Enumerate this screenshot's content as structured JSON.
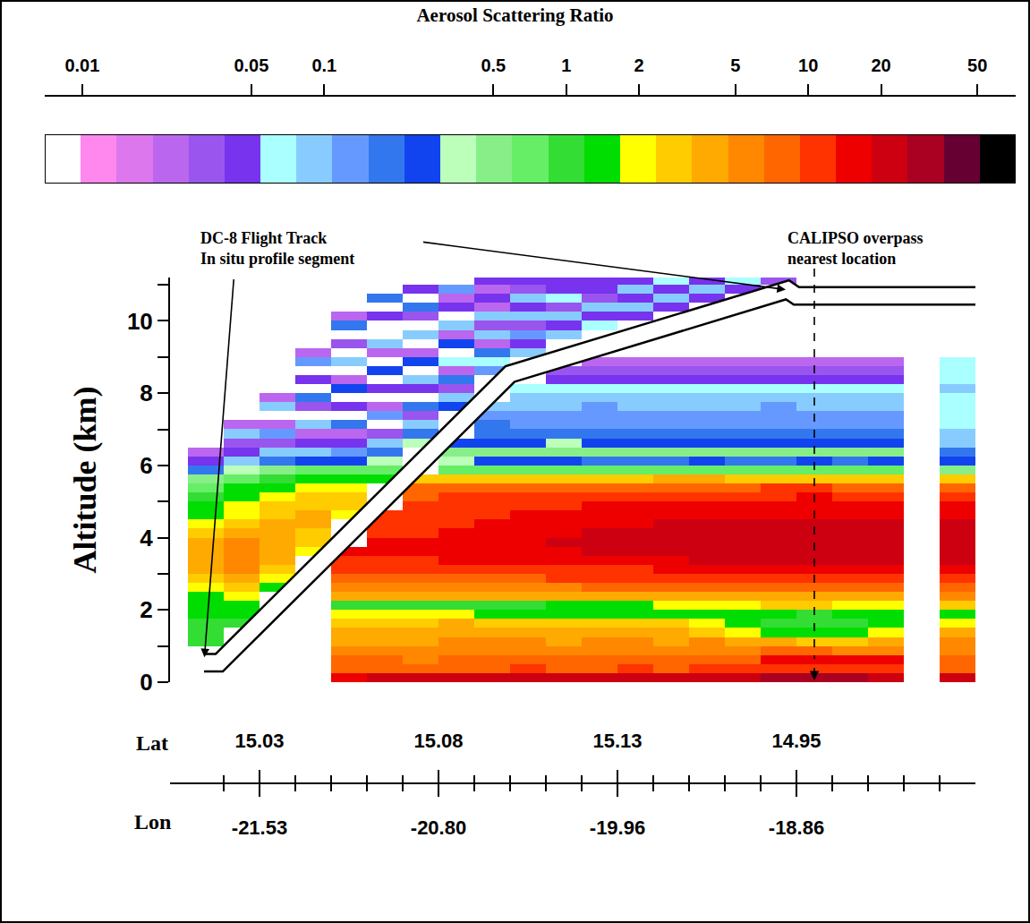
{
  "chart_data": {
    "type": "heatmap",
    "ylabel": "Altitude (km)",
    "xlim": [
      -2.5,
      20
    ],
    "ylim": [
      0,
      11.2
    ],
    "yticks": [
      0,
      2,
      4,
      6,
      8,
      10
    ],
    "yminorticks": [
      1,
      3,
      5,
      7,
      9,
      11
    ],
    "xminorticks": [
      -1,
      1,
      2,
      3,
      4,
      6,
      7,
      8,
      9,
      11,
      12,
      13,
      14,
      16,
      17,
      18,
      19
    ],
    "x_label_rows": [
      {
        "label": "Lat",
        "ticks": [
          {
            "value": 0,
            "label": "15.03"
          },
          {
            "value": 5,
            "label": "15.08"
          },
          {
            "value": 10,
            "label": "15.13"
          },
          {
            "value": 15,
            "label": "14.95"
          }
        ]
      },
      {
        "label": "Lon",
        "ticks": [
          {
            "value": 0,
            "label": "-21.53"
          },
          {
            "value": 5,
            "label": "-20.80"
          },
          {
            "value": 10,
            "label": "-19.96"
          },
          {
            "value": 15,
            "label": "-18.86"
          }
        ]
      }
    ],
    "grid": false,
    "colorbar": {
      "title": "Aerosol Scattering Ratio",
      "range": [
        0.007,
        72
      ],
      "ticks": [
        0.01,
        0.05,
        0.1,
        0.5,
        1,
        2,
        5,
        10,
        20,
        50
      ],
      "log": true
    },
    "flight_track": {
      "x": [
        -1.55,
        -1.125,
        7.0,
        14.75,
        15.0,
        20
      ],
      "y": [
        0.54,
        0.54,
        8.53,
        10.86,
        10.69,
        10.69
      ]
    },
    "annotations": [
      {
        "text": [
          "DC-8 Flight Track",
          "In situ profile segment"
        ]
      },
      {
        "text": [
          "CALIPSO overpass",
          "nearest location"
        ],
        "x": 15.5
      }
    ],
    "x": [
      -1.5,
      -0.5,
      0.5,
      1.5,
      2.5,
      3.5,
      4.5,
      5.5,
      6.5,
      7.5,
      8.5,
      9.5,
      10.5,
      11.5,
      12.5,
      13.5,
      14.5,
      15.5,
      16.5,
      17.5,
      18.5,
      19.5
    ],
    "y": [
      0.125,
      0.375,
      0.625,
      0.875,
      1.125,
      1.375,
      1.625,
      1.875,
      2.125,
      2.375,
      2.625,
      2.875,
      3.125,
      3.375,
      3.625,
      3.875,
      4.125,
      4.375,
      4.625,
      4.875,
      5.125,
      5.375,
      5.625,
      5.875,
      6.125,
      6.375,
      6.625,
      6.875,
      7.125,
      7.375,
      7.625,
      7.875,
      8.125,
      8.375,
      8.625,
      8.875,
      9.125,
      9.375,
      9.625,
      9.875,
      10.125,
      10.375,
      10.625,
      10.875,
      11.125
    ],
    "z": [
      [
        null,
        null,
        null,
        null,
        18,
        20,
        20,
        22,
        20,
        20,
        22,
        20,
        20,
        22,
        20,
        24,
        26,
        26,
        26,
        24,
        null,
        25
      ],
      [
        null,
        null,
        null,
        null,
        9,
        9,
        8,
        9,
        9,
        10,
        9,
        9,
        10,
        9,
        10,
        10,
        12,
        12,
        11,
        11,
        null,
        9
      ],
      [
        null,
        null,
        null,
        null,
        7,
        7,
        6,
        7,
        7,
        8,
        7,
        7,
        8,
        7,
        8,
        9,
        14,
        16,
        16,
        14,
        null,
        8
      ],
      [
        null,
        null,
        null,
        null,
        5,
        5,
        5,
        6,
        6,
        6,
        5,
        6,
        6,
        5,
        6,
        6,
        7,
        7,
        6,
        6,
        null,
        6
      ],
      [
        0.9,
        null,
        null,
        null,
        4,
        4,
        4,
        5,
        5,
        5,
        4,
        5,
        5,
        4,
        5,
        4,
        3.5,
        3,
        3,
        3.5,
        null,
        5
      ],
      [
        1.0,
        null,
        null,
        null,
        3.5,
        3.5,
        4,
        4,
        4,
        4,
        3.5,
        4,
        4,
        3.5,
        3,
        2.2,
        1.5,
        1.2,
        1.3,
        1.8,
        null,
        4
      ],
      [
        1.1,
        1.0,
        null,
        null,
        3,
        3,
        3,
        3.5,
        3,
        3,
        3,
        3,
        2.5,
        2.5,
        2,
        1.6,
        1.0,
        0.9,
        1.1,
        1.5,
        null,
        2
      ],
      [
        1.2,
        1.2,
        null,
        null,
        2,
        2,
        2,
        1.8,
        1.6,
        1.5,
        1.5,
        1.5,
        1.4,
        1.4,
        1.3,
        1.3,
        1.2,
        1.1,
        1.4,
        1.6,
        null,
        1.5
      ],
      [
        1.4,
        1.5,
        null,
        null,
        1,
        1,
        1.1,
        1,
        1,
        1.1,
        1.2,
        1.3,
        1.5,
        1.8,
        2,
        2.2,
        2.5,
        2.5,
        2.2,
        2,
        null,
        3
      ],
      [
        1.6,
        2,
        null,
        null,
        4,
        4,
        4,
        4,
        4,
        4,
        4,
        4.5,
        4.5,
        4.5,
        4.5,
        4.5,
        4,
        4,
        4,
        4,
        null,
        5
      ],
      [
        2,
        3,
        1.2,
        null,
        6,
        6,
        6,
        6,
        6.5,
        6,
        6.5,
        7,
        7,
        7,
        7,
        7,
        7,
        7,
        7,
        7,
        null,
        8
      ],
      [
        2.5,
        4,
        2,
        null,
        8,
        8,
        9,
        9,
        9,
        9,
        10,
        10,
        10,
        10,
        10,
        10,
        11,
        11,
        10,
        10,
        null,
        11
      ],
      [
        3.5,
        5,
        3,
        null,
        11,
        11,
        12,
        12,
        12,
        12,
        13,
        13,
        13,
        14,
        14,
        14,
        15,
        15,
        14,
        14,
        null,
        15
      ],
      [
        4,
        5.5,
        4,
        null,
        13,
        13,
        13,
        14,
        15,
        15,
        16,
        16,
        17,
        18,
        19,
        19,
        20,
        21,
        20,
        19,
        null,
        22
      ],
      [
        4,
        5.5,
        4.5,
        2,
        14,
        14,
        14,
        15,
        16,
        17,
        18,
        19,
        20,
        21,
        22,
        22,
        23,
        24,
        23,
        22,
        null,
        25
      ],
      [
        3.5,
        5,
        4.5,
        2.5,
        null,
        14,
        14,
        15,
        17,
        18,
        19,
        20,
        21,
        22,
        23,
        24,
        25,
        25,
        24,
        23,
        null,
        25
      ],
      [
        3,
        4,
        4,
        3,
        null,
        13,
        13,
        14,
        16,
        17,
        18,
        19,
        20,
        21,
        22,
        22,
        23,
        24,
        23,
        22,
        null,
        22
      ],
      [
        2,
        3,
        3.5,
        3.5,
        null,
        12,
        12,
        13,
        15,
        16,
        17,
        17,
        18,
        19,
        20,
        20,
        21,
        22,
        21,
        20,
        null,
        20
      ],
      [
        1.5,
        2.2,
        3,
        3.5,
        2.2,
        11,
        11,
        12,
        13,
        14,
        15,
        15,
        16,
        17,
        17,
        17,
        18,
        18,
        18,
        17,
        null,
        16
      ],
      [
        1.2,
        1.8,
        2.5,
        3,
        2.5,
        null,
        10,
        11,
        12,
        13,
        13,
        14,
        14,
        15,
        15,
        15,
        16,
        16,
        15,
        15,
        null,
        14
      ],
      [
        1,
        1.5,
        2,
        2.5,
        2.5,
        null,
        9,
        10,
        11,
        11,
        11,
        12,
        12,
        12,
        13,
        13,
        13,
        14,
        13,
        12,
        null,
        12
      ],
      [
        0.8,
        1.2,
        1.5,
        1.8,
        2,
        null,
        7,
        8,
        8,
        8,
        8,
        9,
        9,
        9,
        9,
        9,
        10,
        10,
        9,
        9,
        null,
        9
      ],
      [
        0.5,
        0.8,
        1,
        1.2,
        1.2,
        1.5,
        3,
        3,
        3,
        3,
        3,
        3,
        3,
        3.5,
        3.5,
        3,
        3,
        3,
        3,
        3,
        null,
        2.5
      ],
      [
        0.2,
        0.4,
        0.5,
        0.6,
        0.6,
        0.8,
        null,
        0.8,
        0.7,
        0.7,
        0.6,
        0.7,
        0.7,
        0.6,
        0.6,
        0.7,
        0.6,
        0.6,
        0.7,
        0.7,
        null,
        0.5
      ],
      [
        0.05,
        0.1,
        0.2,
        0.3,
        0.3,
        0.4,
        null,
        0.35,
        0.3,
        0.25,
        0.22,
        0.2,
        0.2,
        0.2,
        0.22,
        0.2,
        0.2,
        0.22,
        0.2,
        0.25,
        null,
        0.3
      ],
      [
        0.02,
        0.05,
        0.08,
        0.1,
        0.12,
        0.2,
        null,
        0.5,
        0.45,
        0.45,
        0.5,
        0.45,
        0.45,
        0.45,
        0.5,
        0.45,
        0.45,
        0.45,
        0.45,
        0.45,
        null,
        0.2
      ],
      [
        null,
        0.03,
        0.03,
        0.05,
        0.05,
        0.08,
        0.4,
        0.3,
        0.3,
        0.3,
        0.35,
        0.3,
        0.3,
        0.3,
        0.3,
        0.3,
        0.3,
        0.3,
        0.3,
        0.3,
        null,
        0.1
      ],
      [
        null,
        0.1,
        0.15,
        0.02,
        0.02,
        0.03,
        0.2,
        null,
        0.2,
        0.18,
        0.18,
        0.2,
        0.18,
        0.17,
        0.18,
        0.18,
        0.17,
        0.17,
        0.18,
        0.18,
        null,
        0.08
      ],
      [
        null,
        0.02,
        0.02,
        0.1,
        0.2,
        0.008,
        0.08,
        null,
        0.16,
        0.15,
        0.15,
        0.15,
        0.14,
        0.15,
        0.15,
        0.14,
        0.15,
        0.14,
        0.15,
        0.15,
        null,
        0.07
      ],
      [
        null,
        null,
        0.008,
        0.008,
        0.008,
        0.15,
        0.03,
        null,
        0.13,
        0.12,
        0.12,
        0.13,
        0.12,
        0.12,
        0.12,
        0.13,
        0.12,
        0.12,
        0.13,
        0.12,
        null,
        0.07
      ],
      [
        null,
        null,
        0.08,
        0.03,
        0.04,
        0.02,
        0.2,
        0.3,
        0.1,
        0.1,
        0.1,
        0.11,
        0.1,
        0.1,
        0.1,
        0.1,
        0.11,
        0.1,
        0.1,
        0.1,
        null,
        0.06
      ],
      [
        null,
        null,
        0.02,
        0.2,
        0.008,
        0.008,
        0.008,
        0.1,
        null,
        0.08,
        0.08,
        0.09,
        0.08,
        0.08,
        0.09,
        0.08,
        0.08,
        0.09,
        0.08,
        0.08,
        null,
        0.07
      ],
      [
        null,
        null,
        0.008,
        0.008,
        0.3,
        0.05,
        0.04,
        0.03,
        null,
        0.06,
        0.06,
        0.07,
        0.06,
        0.07,
        0.06,
        0.06,
        0.07,
        0.06,
        0.06,
        0.06,
        null,
        0.08
      ],
      [
        null,
        null,
        null,
        0.05,
        0.02,
        0.008,
        0.1,
        0.2,
        null,
        null,
        0.04,
        0.05,
        0.04,
        0.05,
        0.04,
        0.04,
        0.05,
        0.04,
        0.05,
        0.04,
        null,
        0.07
      ],
      [
        null,
        null,
        null,
        0.008,
        0.008,
        0.3,
        0.008,
        0.02,
        0.15,
        null,
        0.03,
        0.035,
        0.03,
        0.03,
        0.035,
        0.03,
        0.03,
        0.035,
        0.03,
        0.03,
        null,
        0.06
      ],
      [
        null,
        null,
        null,
        0.15,
        0.1,
        0.008,
        0.3,
        0.06,
        0.06,
        null,
        null,
        0.02,
        0.025,
        0.02,
        0.02,
        0.025,
        0.02,
        0.02,
        0.025,
        0.02,
        null,
        0.06
      ],
      [
        null,
        null,
        null,
        0.02,
        0.008,
        0.02,
        0.02,
        0.008,
        0.2,
        0.1,
        null,
        null,
        null,
        null,
        null,
        null,
        null,
        null,
        null,
        null,
        null,
        null
      ],
      [
        null,
        null,
        null,
        null,
        0.03,
        0.1,
        0.008,
        0.3,
        0.02,
        0.04,
        null,
        null,
        null,
        null,
        null,
        null,
        null,
        null,
        null,
        null,
        null,
        null
      ],
      [
        null,
        null,
        null,
        null,
        0.008,
        0.008,
        0.08,
        0.02,
        0.08,
        0.15,
        0.08,
        null,
        null,
        null,
        null,
        null,
        null,
        null,
        null,
        null,
        null,
        null
      ],
      [
        null,
        null,
        null,
        null,
        0.2,
        0.008,
        0.008,
        0.1,
        0.03,
        0.03,
        0.04,
        0.06,
        null,
        null,
        null,
        null,
        null,
        null,
        null,
        null,
        null,
        null
      ],
      [
        null,
        null,
        null,
        null,
        0.02,
        0.04,
        0.03,
        0.008,
        0.1,
        0.08,
        0.1,
        0.04,
        0.05,
        null,
        null,
        null,
        null,
        null,
        null,
        null,
        null,
        null
      ],
      [
        null,
        null,
        null,
        null,
        null,
        0.008,
        0.2,
        0.04,
        0.02,
        0.04,
        0.03,
        0.1,
        0.08,
        0.05,
        null,
        null,
        null,
        null,
        null,
        null,
        null,
        null
      ],
      [
        null,
        null,
        null,
        null,
        null,
        0.2,
        0.008,
        0.02,
        0.05,
        0.1,
        0.06,
        0.03,
        0.04,
        0.08,
        0.05,
        null,
        null,
        null,
        null,
        null,
        null,
        null
      ],
      [
        null,
        null,
        null,
        null,
        null,
        0.008,
        0.04,
        0.15,
        0.02,
        0.03,
        0.04,
        0.05,
        0.1,
        0.04,
        0.08,
        0.04,
        null,
        null,
        null,
        null,
        null,
        null
      ],
      [
        null,
        null,
        null,
        null,
        null,
        0.008,
        0.008,
        0.008,
        0.04,
        0.05,
        0.05,
        0.04,
        0.05,
        0.06,
        0.04,
        0.06,
        0.03,
        null,
        null,
        null,
        null,
        null
      ]
    ]
  }
}
